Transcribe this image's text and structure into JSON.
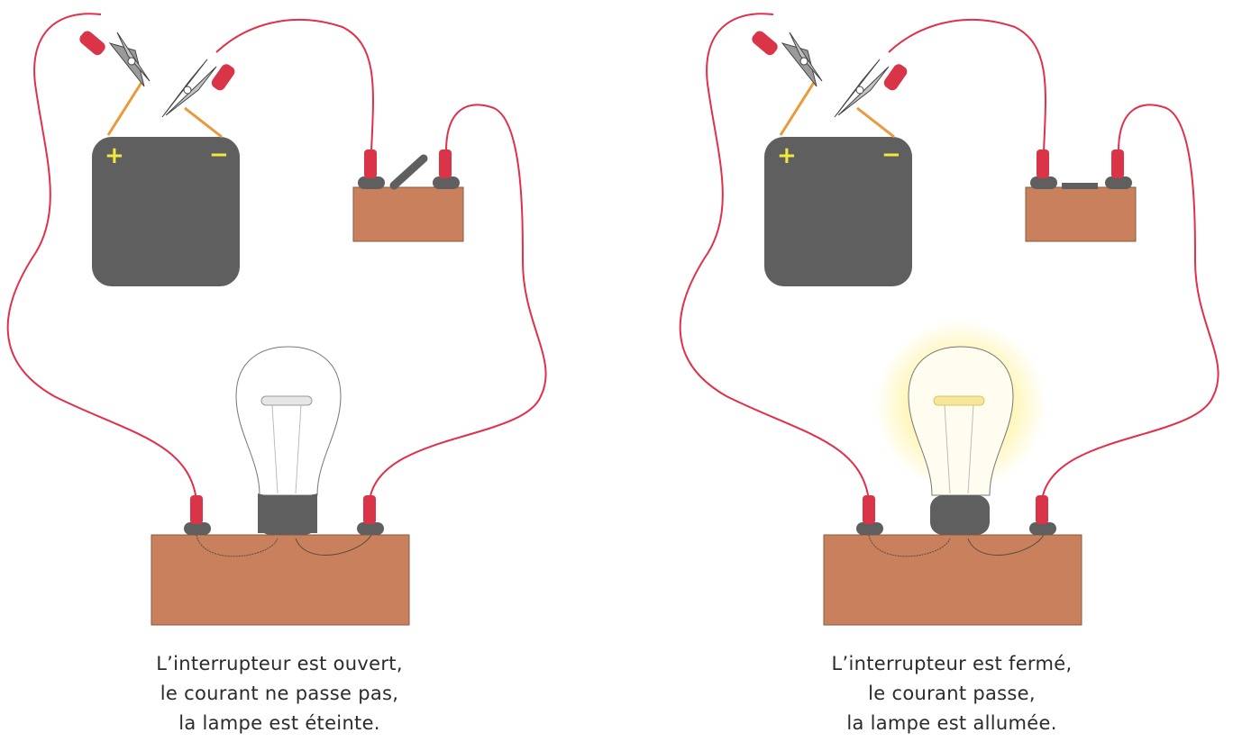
{
  "colors": {
    "wire": "#e0304a",
    "wood": "#c9805c",
    "battery": "#5f5f5f",
    "terminal_sign": "#f3e93a",
    "plug": "#d93448",
    "glow": "#fff3a0",
    "lead": "#e89a3c"
  },
  "left": {
    "battery": {
      "plus": "+",
      "minus": "−"
    },
    "switch_state": "open",
    "lamp_state": "off",
    "caption": [
      "L’interrupteur est ouvert,",
      "le courant ne passe pas,",
      "la lampe est éteinte."
    ]
  },
  "right": {
    "battery": {
      "plus": "+",
      "minus": "−"
    },
    "switch_state": "closed",
    "lamp_state": "on",
    "caption": [
      "L’interrupteur est fermé,",
      "le courant passe,",
      "la lampe est allumée."
    ]
  }
}
